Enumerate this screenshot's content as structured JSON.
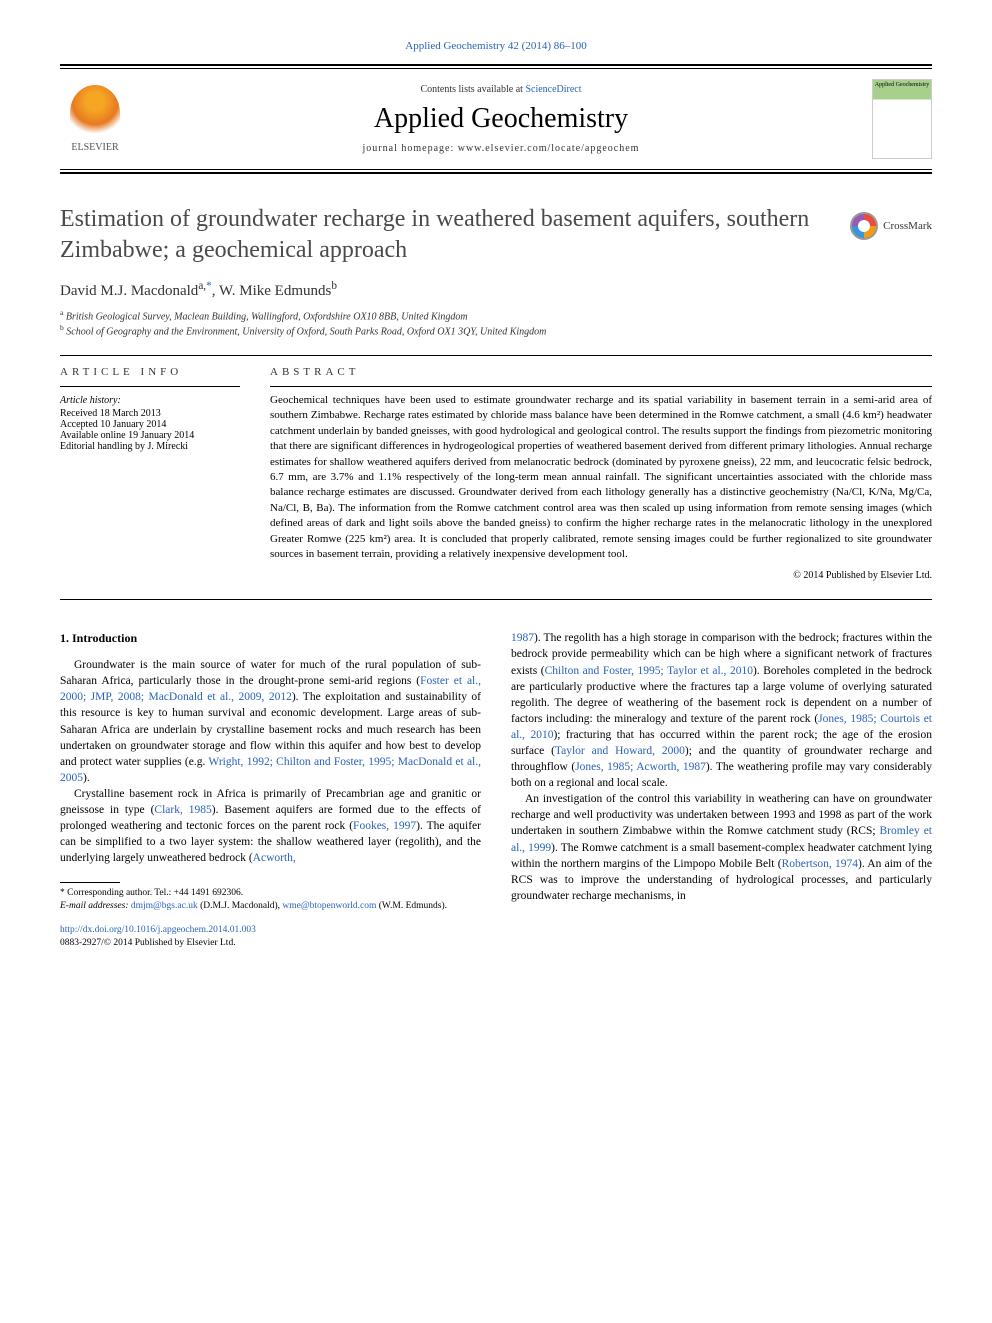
{
  "journal_ref": "Applied Geochemistry 42 (2014) 86–100",
  "header": {
    "contents_prefix": "Contents lists available at ",
    "contents_link": "ScienceDirect",
    "journal_title": "Applied Geochemistry",
    "homepage": "journal homepage: www.elsevier.com/locate/apgeochem",
    "publisher": "ELSEVIER",
    "cover_label": "Applied Geochemistry"
  },
  "crossmark_label": "CrossMark",
  "title": "Estimation of groundwater recharge in weathered basement aquifers, southern Zimbabwe; a geochemical approach",
  "authors_html": {
    "a1_name": "David M.J. Macdonald",
    "a1_sup": "a,",
    "a1_ast": "*",
    "sep": ", ",
    "a2_name": "W. Mike Edmunds",
    "a2_sup": "b"
  },
  "affiliations": {
    "a": "British Geological Survey, Maclean Building, Wallingford, Oxfordshire OX10 8BB, United Kingdom",
    "b": "School of Geography and the Environment, University of Oxford, South Parks Road, Oxford OX1 3QY, United Kingdom"
  },
  "info": {
    "header": "ARTICLE INFO",
    "history_label": "Article history:",
    "received": "Received 18 March 2013",
    "accepted": "Accepted 10 January 2014",
    "online": "Available online 19 January 2014",
    "editor": "Editorial handling by J. Mirecki"
  },
  "abstract": {
    "header": "ABSTRACT",
    "text": "Geochemical techniques have been used to estimate groundwater recharge and its spatial variability in basement terrain in a semi-arid area of southern Zimbabwe. Recharge rates estimated by chloride mass balance have been determined in the Romwe catchment, a small (4.6 km²) headwater catchment underlain by banded gneisses, with good hydrological and geological control. The results support the findings from piezometric monitoring that there are significant differences in hydrogeological properties of weathered basement derived from different primary lithologies. Annual recharge estimates for shallow weathered aquifers derived from melanocratic bedrock (dominated by pyroxene gneiss), 22 mm, and leucocratic felsic bedrock, 6.7 mm, are 3.7% and 1.1% respectively of the long-term mean annual rainfall. The significant uncertainties associated with the chloride mass balance recharge estimates are discussed. Groundwater derived from each lithology generally has a distinctive geochemistry (Na/Cl, K/Na, Mg/Ca, Na/Cl, B, Ba). The information from the Romwe catchment control area was then scaled up using information from remote sensing images (which defined areas of dark and light soils above the banded gneiss) to confirm the higher recharge rates in the melanocratic lithology in the unexplored Greater Romwe (225 km²) area. It is concluded that properly calibrated, remote sensing images could be further regionalized to site groundwater sources in basement terrain, providing a relatively inexpensive development tool.",
    "copyright": "© 2014 Published by Elsevier Ltd."
  },
  "section1_heading": "1. Introduction",
  "col1": {
    "p1a": "Groundwater is the main source of water for much of the rural population of sub-Saharan Africa, particularly those in the drought-prone semi-arid regions (",
    "p1_link1": "Foster et al., 2000; JMP, 2008; MacDonald et al., 2009, 2012",
    "p1b": "). The exploitation and sustainability of this resource is key to human survival and economic development. Large areas of sub-Saharan Africa are underlain by crystalline basement rocks and much research has been undertaken on groundwater storage and flow within this aquifer and how best to develop and protect water supplies (e.g. ",
    "p1_link2": "Wright, 1992; Chilton and Foster, 1995; MacDonald et al., 2005",
    "p1c": ").",
    "p2a": "Crystalline basement rock in Africa is primarily of Precambrian age and granitic or gneissose in type (",
    "p2_link1": "Clark, 1985",
    "p2b": "). Basement aquifers are formed due to the effects of prolonged weathering and tectonic forces on the parent rock (",
    "p2_link2": "Fookes, 1997",
    "p2c": "). The aquifer can be simplified to a two layer system: the shallow weathered layer (regolith), and the underlying largely unweathered bedrock (",
    "p2_link3": "Acworth,"
  },
  "col2": {
    "p1_link1": "1987",
    "p1a": "). The regolith has a high storage in comparison with the bedrock; fractures within the bedrock provide permeability which can be high where a significant network of fractures exists (",
    "p1_link2": "Chilton and Foster, 1995; Taylor et al., 2010",
    "p1b": "). Boreholes completed in the bedrock are particularly productive where the fractures tap a large volume of overlying saturated regolith. The degree of weathering of the basement rock is dependent on a number of factors including: the mineralogy and texture of the parent rock (",
    "p1_link3": "Jones, 1985; Courtois et al., 2010",
    "p1c": "); fracturing that has occurred within the parent rock; the age of the erosion surface (",
    "p1_link4": "Taylor and Howard, 2000",
    "p1d": "); and the quantity of groundwater recharge and throughflow (",
    "p1_link5": "Jones, 1985; Acworth, 1987",
    "p1e": "). The weathering profile may vary considerably both on a regional and local scale.",
    "p2a": "An investigation of the control this variability in weathering can have on groundwater recharge and well productivity was undertaken between 1993 and 1998 as part of the work undertaken in southern Zimbabwe within the Romwe catchment study (RCS; ",
    "p2_link1": "Bromley et al., 1999",
    "p2b": "). The Romwe catchment is a small basement-complex headwater catchment lying within the northern margins of the Limpopo Mobile Belt (",
    "p2_link2": "Robertson, 1974",
    "p2c": "). An aim of the RCS was to improve the understanding of hydrological processes, and particularly groundwater recharge mechanisms, in"
  },
  "footnote": {
    "corr_label": "* Corresponding author. Tel.: +44 1491 692306.",
    "email_label": "E-mail addresses:",
    "email1": "dmjm@bgs.ac.uk",
    "name1": "(D.M.J. Macdonald),",
    "email2": "wme@btopenworld.com",
    "name2": "(W.M. Edmunds)."
  },
  "footer_meta": {
    "doi": "http://dx.doi.org/10.1016/j.apgeochem.2014.01.003",
    "issn": "0883-2927/© 2014 Published by Elsevier Ltd."
  },
  "colors": {
    "link": "#2962b8",
    "text": "#000000",
    "title": "#4a4a4a",
    "elsevier_orange": "#e77923"
  },
  "fonts": {
    "body_pt": 11.5,
    "title_pt": 24,
    "journal_title_pt": 28,
    "small_pt": 10,
    "footnote_pt": 9.5
  }
}
